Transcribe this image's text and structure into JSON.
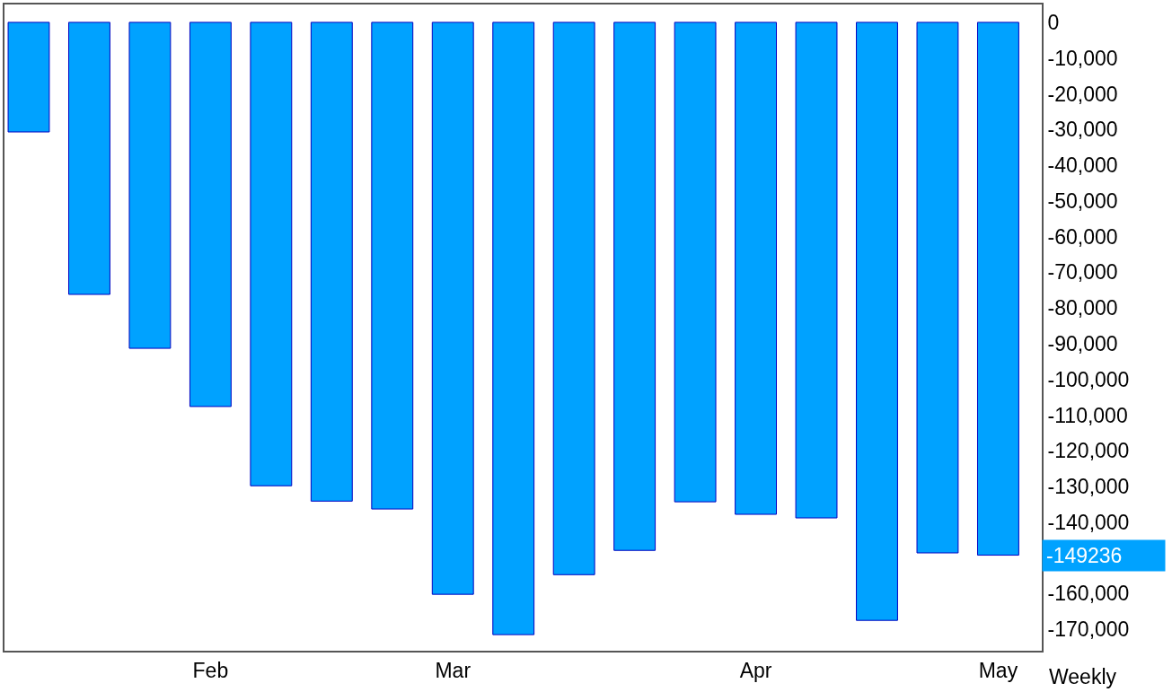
{
  "chart_data": {
    "type": "bar",
    "categories": [
      null,
      null,
      null,
      "Feb",
      null,
      null,
      null,
      "Mar",
      null,
      null,
      null,
      null,
      "Apr",
      null,
      null,
      null,
      "May"
    ],
    "values": [
      -30700,
      -76200,
      -91300,
      -107600,
      -129800,
      -134100,
      -136300,
      -160200,
      -171500,
      -154700,
      -147900,
      -134300,
      -137800,
      -138800,
      -167500,
      -148600,
      -149236
    ],
    "color": "#00a2ff",
    "ylim": [
      -176000,
      5000
    ],
    "yticks": [
      0,
      {
        "value": -10000,
        "label": "-10,000"
      },
      {
        "value": -20000,
        "label": "-20,000"
      },
      {
        "value": -30000,
        "label": "-30,000"
      },
      {
        "value": -40000,
        "label": "-40,000"
      },
      {
        "value": -50000,
        "label": "-50,000"
      },
      {
        "value": -60000,
        "label": "-60,000"
      },
      {
        "value": -70000,
        "label": "-70,000"
      },
      {
        "value": -80000,
        "label": "-80,000"
      },
      {
        "value": -90000,
        "label": "-90,000"
      },
      {
        "value": -100000,
        "label": "-100,000"
      },
      {
        "value": -110000,
        "label": "-110,000"
      },
      {
        "value": -120000,
        "label": "-120,000"
      },
      {
        "value": -130000,
        "label": "-130,000"
      },
      {
        "value": -140000,
        "label": "-140,000"
      },
      {
        "value": -160000,
        "label": "-160,000"
      },
      {
        "value": -170000,
        "label": "-170,000"
      }
    ],
    "annotations": [
      "Weekly",
      "-149236"
    ],
    "grid": false
  }
}
